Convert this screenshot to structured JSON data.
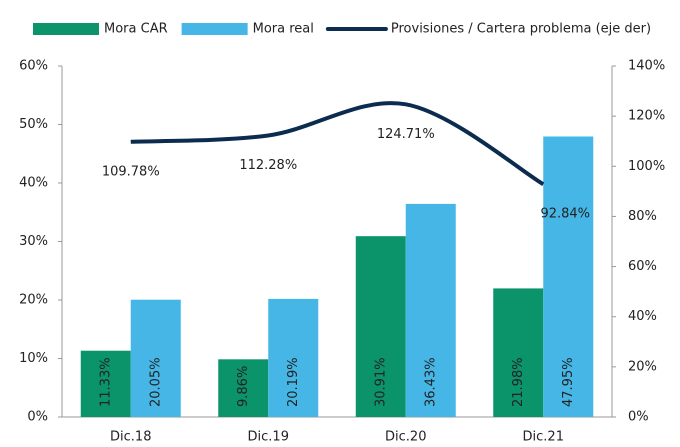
{
  "chart_data": {
    "type": "bar",
    "categories": [
      "Dic.18",
      "Dic.19",
      "Dic.20",
      "Dic.21"
    ],
    "series": [
      {
        "name": "Mora CAR",
        "color": "#0b936a",
        "values": [
          11.33,
          9.86,
          30.91,
          21.98
        ],
        "value_labels": [
          "11.33%",
          "9.86%",
          "30.91%",
          "21.98%"
        ]
      },
      {
        "name": "Mora real",
        "color": "#45b6e6",
        "values": [
          20.05,
          20.19,
          36.43,
          47.95
        ],
        "value_labels": [
          "20.05%",
          "20.19%",
          "36.43%",
          "47.95%"
        ]
      },
      {
        "name": "Provisiones / Cartera problema (eje der)",
        "type": "line",
        "axis": "y2",
        "color": "#0c2c4f",
        "values": [
          109.78,
          112.28,
          124.71,
          92.84
        ],
        "value_labels": [
          "109.78%",
          "112.28%",
          "124.71%",
          "92.84%"
        ]
      }
    ],
    "ylim": [
      0,
      60
    ],
    "yticks": [
      {
        "value": 0,
        "label": "0%"
      },
      {
        "value": 10,
        "label": "10%"
      },
      {
        "value": 20,
        "label": "20%"
      },
      {
        "value": 30,
        "label": "30%"
      },
      {
        "value": 40,
        "label": "40%"
      },
      {
        "value": 50,
        "label": "50%"
      },
      {
        "value": 60,
        "label": "60%"
      }
    ],
    "y2lim": [
      0,
      140
    ],
    "y2ticks": [
      {
        "value": 0,
        "label": "0%"
      },
      {
        "value": 20,
        "label": "20%"
      },
      {
        "value": 40,
        "label": "40%"
      },
      {
        "value": 60,
        "label": "60%"
      },
      {
        "value": 80,
        "label": "80%"
      },
      {
        "value": 100,
        "label": "100%"
      },
      {
        "value": 120,
        "label": "120%"
      },
      {
        "value": 140,
        "label": "140%"
      }
    ],
    "legend": "top",
    "grid": false
  }
}
